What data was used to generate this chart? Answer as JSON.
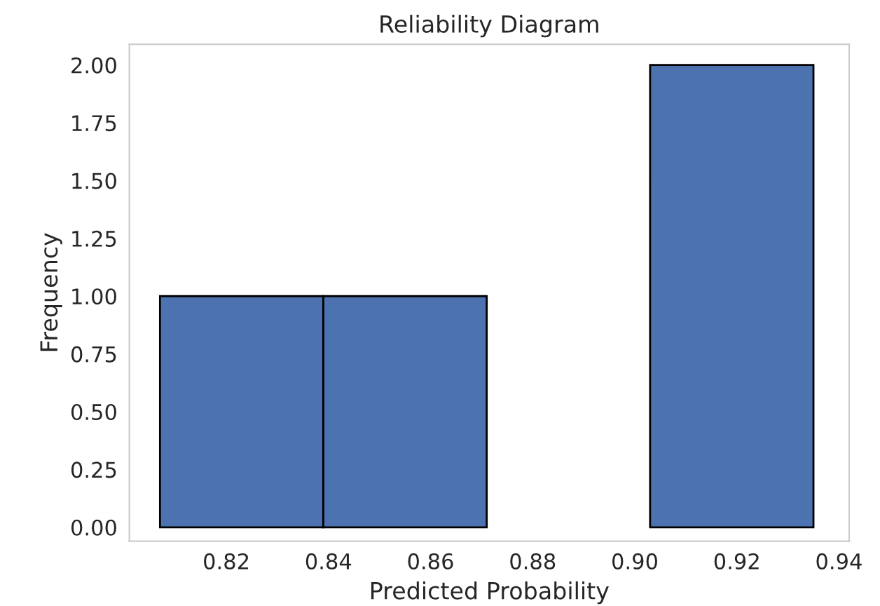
{
  "chart_data": {
    "type": "histogram",
    "title": "Reliability Diagram",
    "xlabel": "Predicted Probability",
    "ylabel": "Frequency",
    "bins": [
      0.807,
      0.839,
      0.871,
      0.903,
      0.935
    ],
    "values": [
      1,
      1,
      0,
      2
    ],
    "color": "#4c72b0",
    "xlim": [
      0.801,
      0.942
    ],
    "xticks": [
      {
        "value": 0.82,
        "label": "0.82"
      },
      {
        "value": 0.84,
        "label": "0.84"
      },
      {
        "value": 0.86,
        "label": "0.86"
      },
      {
        "value": 0.88,
        "label": "0.88"
      },
      {
        "value": 0.9,
        "label": "0.90"
      },
      {
        "value": 0.92,
        "label": "0.92"
      },
      {
        "value": 0.94,
        "label": "0.94"
      }
    ],
    "ylim": [
      -0.06,
      2.09
    ],
    "yticks": [
      {
        "value": 0,
        "label": "0.00"
      },
      {
        "value": 0.25,
        "label": "0.25"
      },
      {
        "value": 0.5,
        "label": "0.50"
      },
      {
        "value": 0.75,
        "label": "0.75"
      },
      {
        "value": 1,
        "label": "1.00"
      },
      {
        "value": 1.25,
        "label": "1.25"
      },
      {
        "value": 1.5,
        "label": "1.50"
      },
      {
        "value": 1.75,
        "label": "1.75"
      },
      {
        "value": 2,
        "label": "2.00"
      }
    ],
    "grid": false
  }
}
